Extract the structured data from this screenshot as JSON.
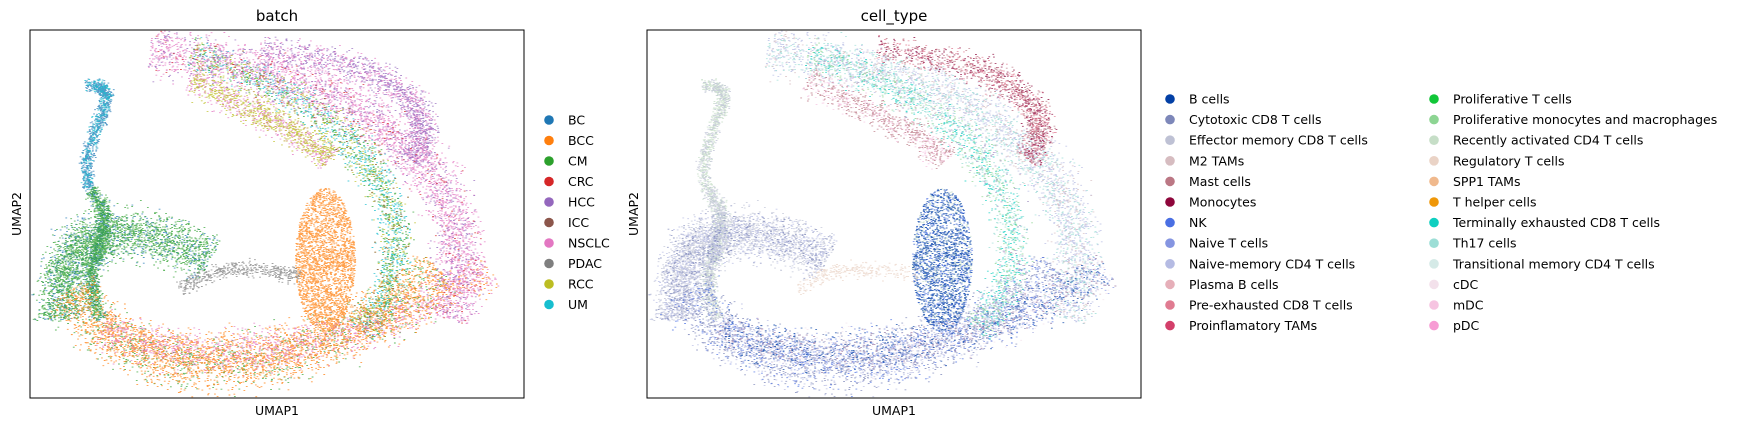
{
  "chart_data": [
    {
      "type": "scatter",
      "title": "batch",
      "xlabel": "UMAP1",
      "ylabel": "UMAP2",
      "grid": false,
      "legend_position": "right",
      "series": [
        {
          "name": "BC",
          "color": "#1f77b4"
        },
        {
          "name": "BCC",
          "color": "#ff7f0e"
        },
        {
          "name": "CM",
          "color": "#2ca02c"
        },
        {
          "name": "CRC",
          "color": "#d62728"
        },
        {
          "name": "HCC",
          "color": "#9467bd"
        },
        {
          "name": "ICC",
          "color": "#8c564b"
        },
        {
          "name": "NSCLC",
          "color": "#e377c2"
        },
        {
          "name": "PDAC",
          "color": "#7f7f7f"
        },
        {
          "name": "RCC",
          "color": "#bcbd22"
        },
        {
          "name": "UM",
          "color": "#17becf"
        }
      ]
    },
    {
      "type": "scatter",
      "title": "cell_type",
      "xlabel": "UMAP1",
      "ylabel": "UMAP2",
      "grid": false,
      "legend_position": "right",
      "series": [
        {
          "name": "B cells",
          "color": "#023fa5"
        },
        {
          "name": "Cytotoxic CD8 T cells",
          "color": "#7d87b9"
        },
        {
          "name": "Effector memory CD8 T cells",
          "color": "#bec1d4"
        },
        {
          "name": "M2 TAMs",
          "color": "#d6bcc0"
        },
        {
          "name": "Mast cells",
          "color": "#bb7784"
        },
        {
          "name": "Monocytes",
          "color": "#8e063b"
        },
        {
          "name": "NK",
          "color": "#4a6fe3"
        },
        {
          "name": "Naive T cells",
          "color": "#8595e1"
        },
        {
          "name": "Naive-memory CD4 T cells",
          "color": "#b5bbe3"
        },
        {
          "name": "Plasma B cells",
          "color": "#e6afb9"
        },
        {
          "name": "Pre-exhausted CD8 T cells",
          "color": "#e07b91"
        },
        {
          "name": "Proinflamatory TAMs",
          "color": "#d33f6a"
        },
        {
          "name": "Proliferative T cells",
          "color": "#11c638"
        },
        {
          "name": "Proliferative monocytes and macrophages",
          "color": "#8dd593"
        },
        {
          "name": "Recently activated CD4 T cells",
          "color": "#c6dec7"
        },
        {
          "name": "Regulatory T cells",
          "color": "#ead3c6"
        },
        {
          "name": "SPP1 TAMs",
          "color": "#f0b98d"
        },
        {
          "name": "T helper cells",
          "color": "#ef9708"
        },
        {
          "name": "Terminally exhausted CD8 T cells",
          "color": "#0fcfc0"
        },
        {
          "name": "Th17 cells",
          "color": "#9cded6"
        },
        {
          "name": "Transitional memory CD4 T cells",
          "color": "#d5eae7"
        },
        {
          "name": "cDC",
          "color": "#f3e1eb"
        },
        {
          "name": "mDC",
          "color": "#f6c4e1"
        },
        {
          "name": "pDC",
          "color": "#f79cd4"
        }
      ]
    }
  ]
}
